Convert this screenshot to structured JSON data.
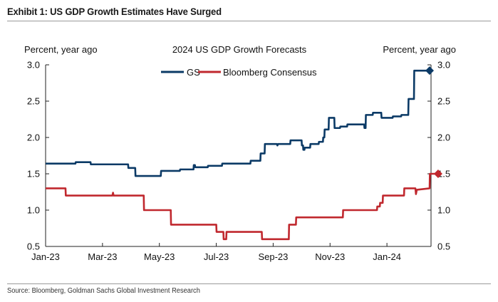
{
  "exhibit_title": "Exhibit 1: US GDP Growth Estimates Have Surged",
  "source": "Source: Bloomberg, Goldman Sachs Global Investment Research",
  "chart_data": {
    "type": "line",
    "title": "2024 US GDP Growth Forecasts",
    "ylabel_left": "Percent, year ago",
    "ylabel_right": "Percent, year ago",
    "xlabel": "",
    "ylim": [
      0.5,
      3.0
    ],
    "yticks": [
      "0.5",
      "1.0",
      "1.5",
      "2.0",
      "2.5",
      "3.0"
    ],
    "xlim": [
      0,
      13.55
    ],
    "xticks": [
      {
        "x": 0,
        "label": "Jan-23"
      },
      {
        "x": 2,
        "label": "Mar-23"
      },
      {
        "x": 4,
        "label": "May-23"
      },
      {
        "x": 6,
        "label": "Jul-23"
      },
      {
        "x": 8,
        "label": "Sep-23"
      },
      {
        "x": 10,
        "label": "Nov-23"
      },
      {
        "x": 12,
        "label": "Jan-24"
      }
    ],
    "legend_position": "top-center",
    "series": [
      {
        "name": "GS",
        "color": "#0b3a66",
        "marker": "diamond",
        "points": [
          [
            0,
            1.64
          ],
          [
            1.05,
            1.64
          ],
          [
            1.06,
            1.66
          ],
          [
            1.58,
            1.66
          ],
          [
            1.59,
            1.63
          ],
          [
            2.9,
            1.63
          ],
          [
            2.91,
            1.58
          ],
          [
            3.15,
            1.58
          ],
          [
            3.16,
            1.47
          ],
          [
            4.05,
            1.47
          ],
          [
            4.06,
            1.54
          ],
          [
            4.72,
            1.54
          ],
          [
            4.73,
            1.56
          ],
          [
            5.2,
            1.56
          ],
          [
            5.21,
            1.62
          ],
          [
            5.25,
            1.62
          ],
          [
            5.26,
            1.59
          ],
          [
            5.7,
            1.59
          ],
          [
            5.71,
            1.61
          ],
          [
            6.2,
            1.61
          ],
          [
            6.21,
            1.64
          ],
          [
            7.2,
            1.64
          ],
          [
            7.21,
            1.68
          ],
          [
            7.55,
            1.68
          ],
          [
            7.56,
            1.78
          ],
          [
            7.7,
            1.78
          ],
          [
            7.71,
            1.91
          ],
          [
            8.13,
            1.91
          ],
          [
            8.15,
            1.89
          ],
          [
            8.17,
            1.91
          ],
          [
            8.6,
            1.91
          ],
          [
            8.61,
            1.96
          ],
          [
            9.0,
            1.96
          ],
          [
            9.01,
            1.89
          ],
          [
            9.05,
            1.89
          ],
          [
            9.06,
            1.83
          ],
          [
            9.1,
            1.83
          ],
          [
            9.11,
            1.86
          ],
          [
            9.3,
            1.86
          ],
          [
            9.31,
            1.91
          ],
          [
            9.6,
            1.91
          ],
          [
            9.61,
            1.94
          ],
          [
            9.75,
            1.94
          ],
          [
            9.76,
            2.0
          ],
          [
            9.8,
            2.0
          ],
          [
            9.81,
            2.11
          ],
          [
            9.95,
            2.11
          ],
          [
            9.96,
            2.27
          ],
          [
            10.15,
            2.27
          ],
          [
            10.16,
            2.13
          ],
          [
            10.35,
            2.13
          ],
          [
            10.36,
            2.15
          ],
          [
            10.6,
            2.15
          ],
          [
            10.61,
            2.18
          ],
          [
            11.2,
            2.18
          ],
          [
            11.21,
            2.13
          ],
          [
            11.25,
            2.13
          ],
          [
            11.26,
            2.31
          ],
          [
            11.5,
            2.31
          ],
          [
            11.51,
            2.34
          ],
          [
            11.8,
            2.34
          ],
          [
            11.81,
            2.27
          ],
          [
            12.2,
            2.27
          ],
          [
            12.21,
            2.29
          ],
          [
            12.5,
            2.29
          ],
          [
            12.51,
            2.31
          ],
          [
            12.75,
            2.31
          ],
          [
            12.76,
            2.53
          ],
          [
            12.95,
            2.53
          ],
          [
            12.96,
            2.92
          ],
          [
            13.5,
            2.92
          ]
        ]
      },
      {
        "name": "Bloomberg Consensus",
        "color": "#c0282e",
        "marker": "diamond",
        "points": [
          [
            0,
            1.3
          ],
          [
            0.7,
            1.3
          ],
          [
            0.71,
            1.2
          ],
          [
            2.35,
            1.2
          ],
          [
            2.37,
            1.24
          ],
          [
            2.39,
            1.2
          ],
          [
            3.45,
            1.2
          ],
          [
            3.46,
            1.0
          ],
          [
            4.4,
            1.0
          ],
          [
            4.41,
            0.8
          ],
          [
            6.0,
            0.8
          ],
          [
            6.01,
            0.7
          ],
          [
            6.25,
            0.7
          ],
          [
            6.26,
            0.6
          ],
          [
            6.35,
            0.6
          ],
          [
            6.36,
            0.7
          ],
          [
            7.6,
            0.7
          ],
          [
            7.61,
            0.6
          ],
          [
            8.55,
            0.6
          ],
          [
            8.56,
            0.8
          ],
          [
            8.8,
            0.8
          ],
          [
            8.81,
            0.9
          ],
          [
            10.45,
            0.9
          ],
          [
            10.46,
            1.0
          ],
          [
            11.65,
            1.0
          ],
          [
            11.66,
            1.05
          ],
          [
            11.75,
            1.05
          ],
          [
            11.76,
            1.1
          ],
          [
            11.85,
            1.1
          ],
          [
            11.86,
            1.2
          ],
          [
            12.6,
            1.2
          ],
          [
            12.61,
            1.3
          ],
          [
            13.0,
            1.3
          ],
          [
            13.02,
            1.22
          ],
          [
            13.05,
            1.28
          ],
          [
            13.5,
            1.3
          ],
          [
            13.51,
            1.5
          ],
          [
            13.8,
            1.5
          ]
        ]
      }
    ]
  }
}
